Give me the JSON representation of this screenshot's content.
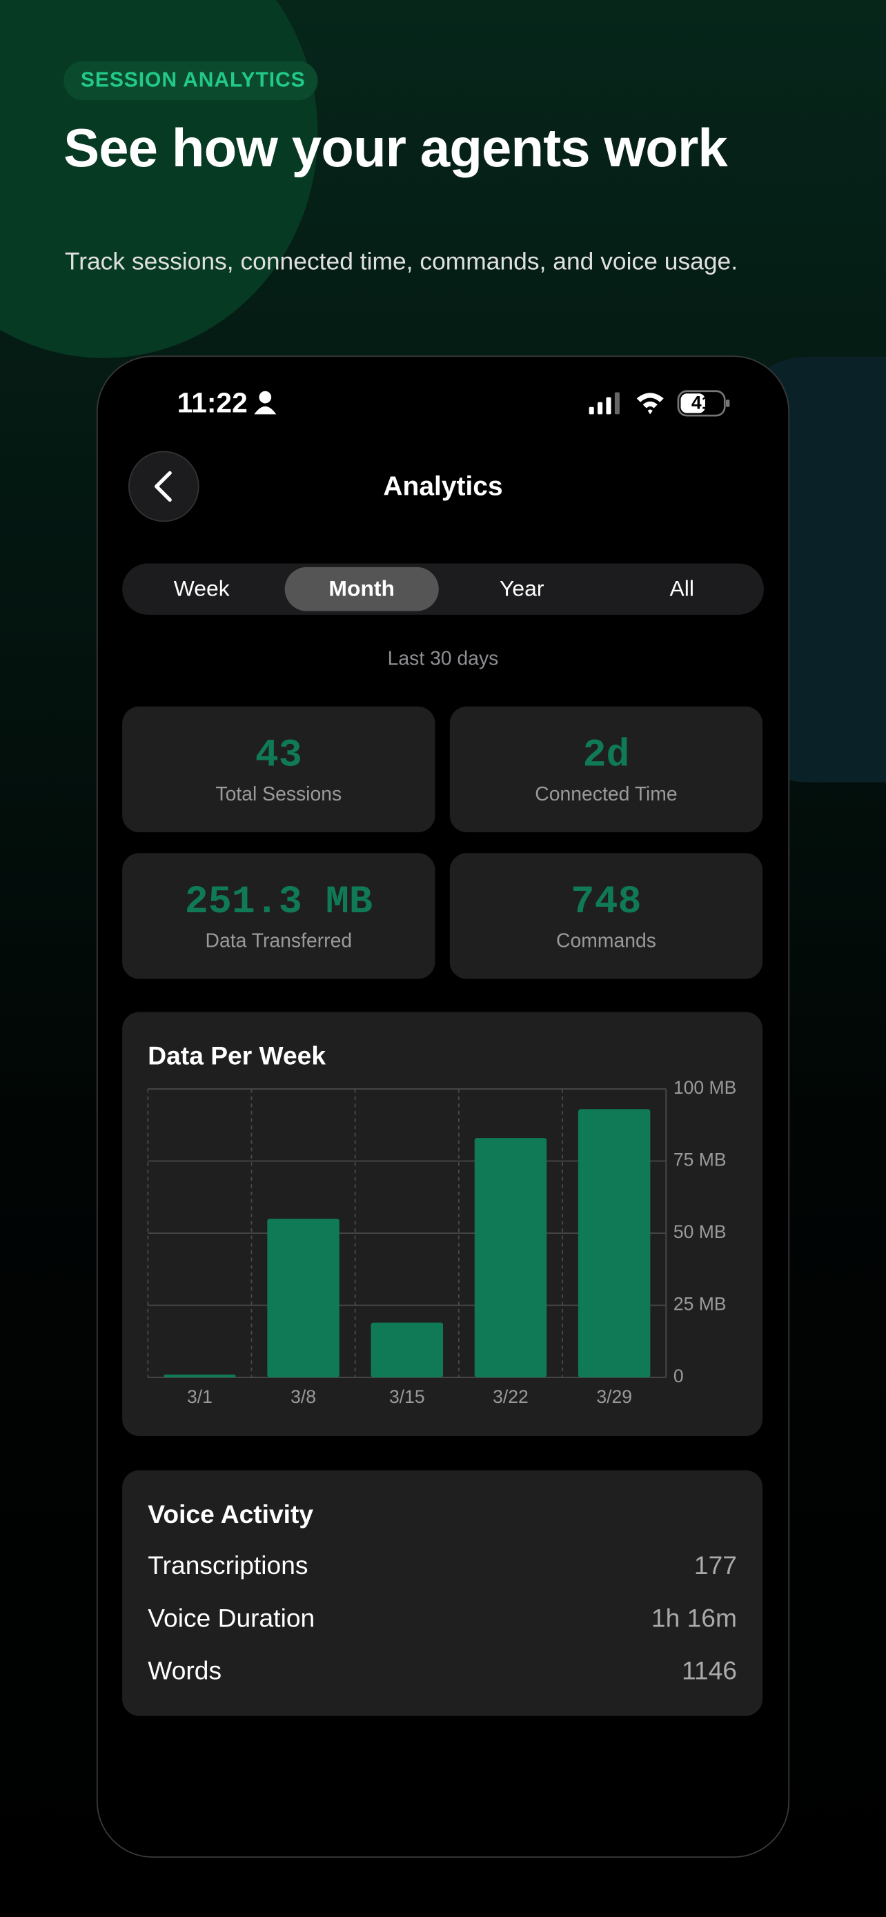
{
  "header": {
    "eyebrow": "SESSION ANALYTICS",
    "title": "See how your agents work",
    "subtitle": "Track sessions, connected time, commands, and voice usage."
  },
  "status_bar": {
    "time": "11:22",
    "battery": 41
  },
  "nav": {
    "title": "Analytics"
  },
  "segments": [
    "Week",
    "Month",
    "Year",
    "All"
  ],
  "period_label": "Last 30 days",
  "stats": [
    {
      "value": 43,
      "label": "Total Sessions"
    },
    {
      "value": "2d",
      "label": "Connected Time"
    },
    {
      "value": "251.3 MB",
      "label": "Data Transferred"
    },
    {
      "value": 748,
      "label": "Commands"
    }
  ],
  "chart_data": {
    "type": "bar",
    "title": "Data Per Week",
    "categories": [
      "3/1",
      "3/8",
      "3/15",
      "3/22",
      "3/29"
    ],
    "values": [
      1,
      55,
      19,
      83,
      93
    ],
    "color": "#0f7a55",
    "ylim": [
      0,
      100
    ],
    "yticks": [
      0,
      {
        "value": 25,
        "label": "25 MB"
      },
      {
        "value": 50,
        "label": "50 MB"
      },
      {
        "value": 75,
        "label": "75 MB"
      },
      {
        "value": 100,
        "label": "100 MB"
      }
    ],
    "grid": true
  },
  "voice": {
    "title": "Voice Activity",
    "rows": [
      [
        "Transcriptions",
        177
      ],
      [
        "Voice Duration",
        "1h 16m"
      ],
      [
        "Words",
        1146
      ]
    ]
  }
}
